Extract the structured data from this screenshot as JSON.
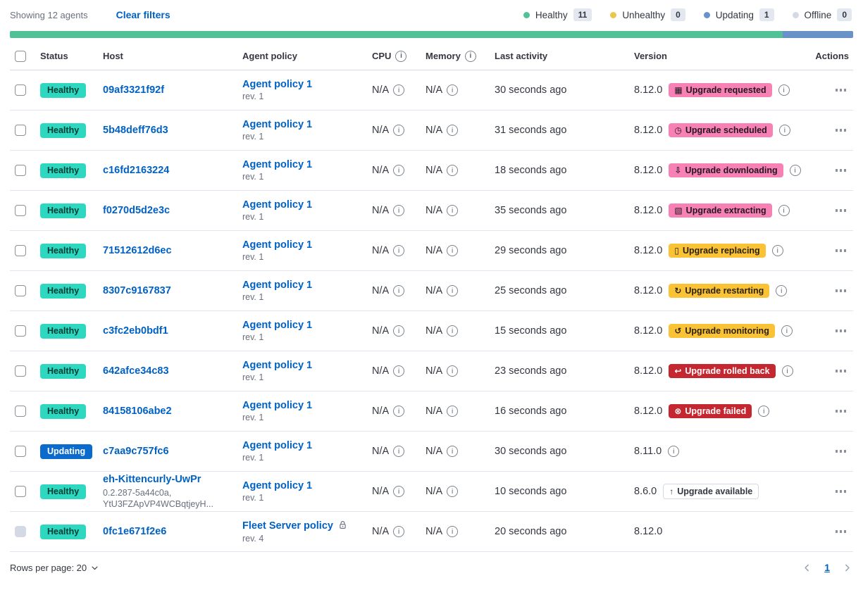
{
  "toolbar": {
    "showing": "Showing 12 agents",
    "clear_filters": "Clear filters",
    "legend": [
      {
        "label": "Healthy",
        "count": "11",
        "color": "#53C197"
      },
      {
        "label": "Unhealthy",
        "count": "0",
        "color": "#E8C74C"
      },
      {
        "label": "Updating",
        "count": "1",
        "color": "#6992C8"
      },
      {
        "label": "Offline",
        "count": "0",
        "color": "#D3DAE6"
      }
    ]
  },
  "progress_bar": {
    "segments": [
      {
        "name": "healthy",
        "color": "#53C197",
        "fraction": 0.9167
      },
      {
        "name": "updating",
        "color": "#6992C8",
        "fraction": 0.0833
      }
    ]
  },
  "table": {
    "headers": {
      "status": "Status",
      "host": "Host",
      "policy": "Agent policy",
      "cpu": "CPU",
      "memory": "Memory",
      "last_activity": "Last activity",
      "version": "Version",
      "actions": "Actions"
    }
  },
  "rows": [
    {
      "status": "Healthy",
      "status_type": "healthy",
      "host": "09af3321f92f",
      "policy": "Agent policy 1",
      "rev": "rev. 1",
      "policy_locked": false,
      "cpu": "N/A",
      "memory": "N/A",
      "last_activity": "30 seconds ago",
      "version": "8.12.0",
      "version_info": true,
      "checkbox_disabled": false,
      "badge": {
        "label": "Upgrade requested",
        "style": "pink",
        "glyph": "▦",
        "icon": "calendar-icon"
      }
    },
    {
      "status": "Healthy",
      "status_type": "healthy",
      "host": "5b48deff76d3",
      "policy": "Agent policy 1",
      "rev": "rev. 1",
      "policy_locked": false,
      "cpu": "N/A",
      "memory": "N/A",
      "last_activity": "31 seconds ago",
      "version": "8.12.0",
      "version_info": true,
      "checkbox_disabled": false,
      "badge": {
        "label": "Upgrade scheduled",
        "style": "pink",
        "glyph": "◷",
        "icon": "clock-icon"
      }
    },
    {
      "status": "Healthy",
      "status_type": "healthy",
      "host": "c16fd2163224",
      "policy": "Agent policy 1",
      "rev": "rev. 1",
      "policy_locked": false,
      "cpu": "N/A",
      "memory": "N/A",
      "last_activity": "18 seconds ago",
      "version": "8.12.0",
      "version_info": true,
      "checkbox_disabled": false,
      "badge": {
        "label": "Upgrade downloading",
        "style": "pink",
        "glyph": "⇩",
        "icon": "download-icon"
      }
    },
    {
      "status": "Healthy",
      "status_type": "healthy",
      "host": "f0270d5d2e3c",
      "policy": "Agent policy 1",
      "rev": "rev. 1",
      "policy_locked": false,
      "cpu": "N/A",
      "memory": "N/A",
      "last_activity": "35 seconds ago",
      "version": "8.12.0",
      "version_info": true,
      "checkbox_disabled": false,
      "badge": {
        "label": "Upgrade extracting",
        "style": "pink",
        "glyph": "▧",
        "icon": "package-icon"
      }
    },
    {
      "status": "Healthy",
      "status_type": "healthy",
      "host": "71512612d6ec",
      "policy": "Agent policy 1",
      "rev": "rev. 1",
      "policy_locked": false,
      "cpu": "N/A",
      "memory": "N/A",
      "last_activity": "29 seconds ago",
      "version": "8.12.0",
      "version_info": true,
      "checkbox_disabled": false,
      "badge": {
        "label": "Upgrade replacing",
        "style": "yellow",
        "glyph": "▯",
        "icon": "document-icon"
      }
    },
    {
      "status": "Healthy",
      "status_type": "healthy",
      "host": "8307c9167837",
      "policy": "Agent policy 1",
      "rev": "rev. 1",
      "policy_locked": false,
      "cpu": "N/A",
      "memory": "N/A",
      "last_activity": "25 seconds ago",
      "version": "8.12.0",
      "version_info": true,
      "checkbox_disabled": false,
      "badge": {
        "label": "Upgrade restarting",
        "style": "yellow",
        "glyph": "↻",
        "icon": "refresh-icon"
      }
    },
    {
      "status": "Healthy",
      "status_type": "healthy",
      "host": "c3fc2eb0bdf1",
      "policy": "Agent policy 1",
      "rev": "rev. 1",
      "policy_locked": false,
      "cpu": "N/A",
      "memory": "N/A",
      "last_activity": "15 seconds ago",
      "version": "8.12.0",
      "version_info": true,
      "checkbox_disabled": false,
      "badge": {
        "label": "Upgrade monitoring",
        "style": "yellow",
        "glyph": "↺",
        "icon": "time-refresh-icon"
      }
    },
    {
      "status": "Healthy",
      "status_type": "healthy",
      "host": "642afce34c83",
      "policy": "Agent policy 1",
      "rev": "rev. 1",
      "policy_locked": false,
      "cpu": "N/A",
      "memory": "N/A",
      "last_activity": "23 seconds ago",
      "version": "8.12.0",
      "version_info": true,
      "checkbox_disabled": false,
      "badge": {
        "label": "Upgrade rolled back",
        "style": "red",
        "glyph": "↩",
        "icon": "return-arrow-icon"
      }
    },
    {
      "status": "Healthy",
      "status_type": "healthy",
      "host": "84158106abe2",
      "policy": "Agent policy 1",
      "rev": "rev. 1",
      "policy_locked": false,
      "cpu": "N/A",
      "memory": "N/A",
      "last_activity": "16 seconds ago",
      "version": "8.12.0",
      "version_info": true,
      "checkbox_disabled": false,
      "badge": {
        "label": "Upgrade failed",
        "style": "red",
        "glyph": "⊗",
        "icon": "error-cross-icon"
      }
    },
    {
      "status": "Updating",
      "status_type": "updating",
      "host": "c7aa9c757fc6",
      "policy": "Agent policy 1",
      "rev": "rev. 1",
      "policy_locked": false,
      "cpu": "N/A",
      "memory": "N/A",
      "last_activity": "30 seconds ago",
      "version": "8.11.0",
      "version_info": true,
      "checkbox_disabled": false,
      "badge": null
    },
    {
      "status": "Healthy",
      "status_type": "healthy",
      "host": "eh-Kittencurly-UwPr",
      "host_meta": [
        "0.2.287-5a44c0a,",
        "YtU3FZApVP4WCBqtjeyH..."
      ],
      "policy": "Agent policy 1",
      "rev": "rev. 1",
      "policy_locked": false,
      "cpu": "N/A",
      "memory": "N/A",
      "last_activity": "10 seconds ago",
      "version": "8.6.0",
      "version_info": false,
      "checkbox_disabled": false,
      "badge": {
        "label": "Upgrade available",
        "style": "hollow",
        "glyph": "↑",
        "icon": "arrow-up-icon"
      }
    },
    {
      "status": "Healthy",
      "status_type": "healthy",
      "host": "0fc1e671f2e6",
      "policy": "Fleet Server policy",
      "rev": "rev. 4",
      "policy_locked": true,
      "cpu": "N/A",
      "memory": "N/A",
      "last_activity": "20 seconds ago",
      "version": "8.12.0",
      "version_info": false,
      "checkbox_disabled": true,
      "badge": null
    }
  ],
  "footer": {
    "rows_per_page": "Rows per page: 20",
    "page": "1"
  }
}
